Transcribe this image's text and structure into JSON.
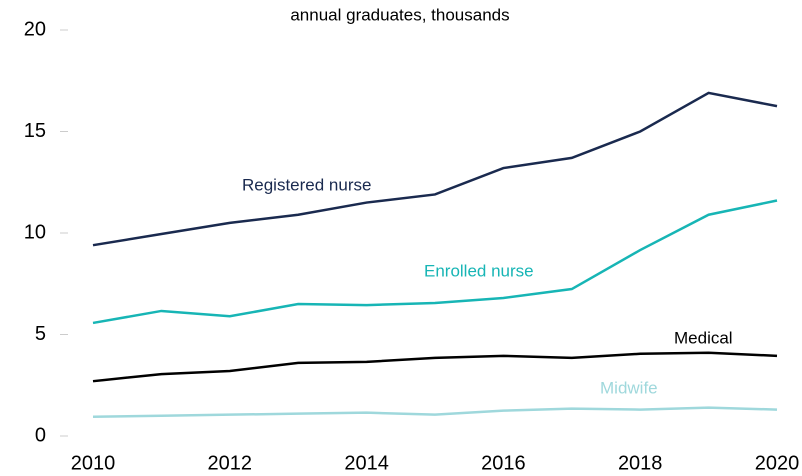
{
  "chart_data": {
    "type": "line",
    "subtitle": "annual graduates, thousands",
    "x": [
      2010,
      2011,
      2012,
      2013,
      2014,
      2015,
      2016,
      2017,
      2018,
      2019,
      2020
    ],
    "xlim": [
      2010,
      2020
    ],
    "xticks": [
      2010,
      2012,
      2014,
      2016,
      2018,
      2020
    ],
    "ylim": [
      0,
      20
    ],
    "yticks": [
      0,
      5,
      10,
      15,
      20
    ],
    "series": [
      {
        "name": "Registered nurse",
        "color": "#1a2a4f",
        "values": [
          9.4,
          9.95,
          10.5,
          10.9,
          11.5,
          11.9,
          13.2,
          13.7,
          15.0,
          16.9,
          16.25
        ]
      },
      {
        "name": "Enrolled nurse",
        "color": "#17b5b5",
        "values": [
          5.57,
          6.16,
          5.9,
          6.5,
          6.45,
          6.55,
          6.8,
          7.24,
          9.16,
          10.9,
          11.6
        ]
      },
      {
        "name": "Medical",
        "color": "#000000",
        "values": [
          2.7,
          3.05,
          3.2,
          3.6,
          3.65,
          3.85,
          3.95,
          3.85,
          4.05,
          4.1,
          3.95
        ]
      },
      {
        "name": "Midwife",
        "color": "#9fd8dc",
        "values": [
          0.95,
          1.0,
          1.05,
          1.1,
          1.15,
          1.05,
          1.25,
          1.35,
          1.3,
          1.4,
          1.3
        ]
      }
    ]
  }
}
